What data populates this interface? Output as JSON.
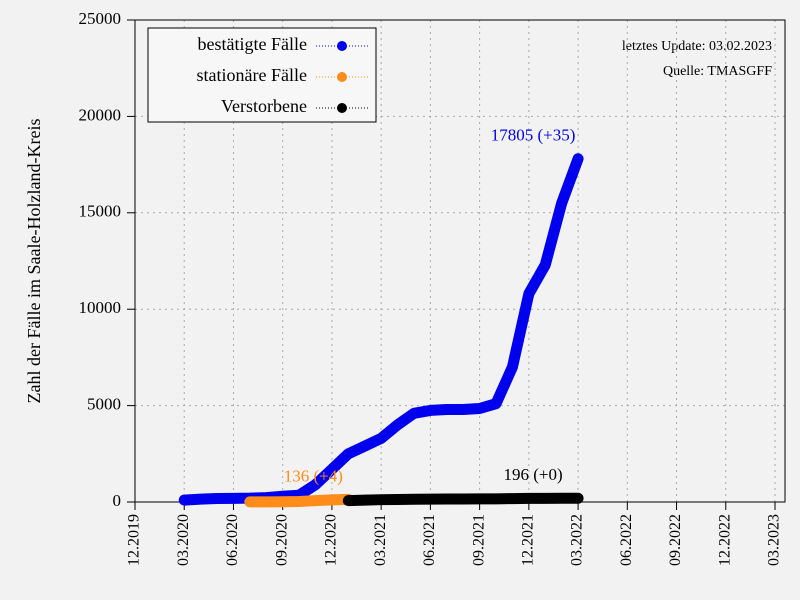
{
  "chart_data": {
    "type": "line",
    "y_label": "Zahl der Fälle im Saale-Holzland-Kreis",
    "annotations": [
      "letztes Update: 03.02.2023",
      "Quelle: TMASGFF"
    ],
    "xlim": [
      "2019-12",
      "2023-03"
    ],
    "xticks": [
      {
        "value": "2019-12",
        "label": "12.2019"
      },
      {
        "value": "2020-03",
        "label": "03.2020"
      },
      {
        "value": "2020-06",
        "label": "06.2020"
      },
      {
        "value": "2020-09",
        "label": "09.2020"
      },
      {
        "value": "2020-12",
        "label": "12.2020"
      },
      {
        "value": "2021-03",
        "label": "03.2021"
      },
      {
        "value": "2021-06",
        "label": "06.2021"
      },
      {
        "value": "2021-09",
        "label": "09.2021"
      },
      {
        "value": "2021-12",
        "label": "12.2021"
      },
      {
        "value": "2022-03",
        "label": "03.2022"
      },
      {
        "value": "2022-06",
        "label": "06.2022"
      },
      {
        "value": "2022-09",
        "label": "09.2022"
      },
      {
        "value": "2022-12",
        "label": "12.2022"
      },
      {
        "value": "2023-03",
        "label": "03.2023"
      }
    ],
    "ylim": [
      0,
      25000
    ],
    "yticks": [
      0,
      5000,
      10000,
      15000,
      20000,
      25000
    ],
    "grid": true,
    "legend": "upper left",
    "series": [
      {
        "name": "bestätigte Fälle",
        "color": "#0000ee",
        "end_label": "17805 (+35)",
        "x": [
          "2020-03",
          "2020-04",
          "2020-05",
          "2020-06",
          "2020-07",
          "2020-08",
          "2020-09",
          "2020-10",
          "2020-11",
          "2020-12",
          "2021-01",
          "2021-02",
          "2021-03",
          "2021-04",
          "2021-05",
          "2021-06",
          "2021-07",
          "2021-08",
          "2021-09",
          "2021-10",
          "2021-11",
          "2021-12",
          "2022-01",
          "2022-02",
          "2022-03"
        ],
        "values": [
          100,
          150,
          180,
          190,
          200,
          230,
          300,
          350,
          900,
          1700,
          2500,
          2900,
          3300,
          4000,
          4600,
          4750,
          4800,
          4800,
          4850,
          5100,
          7000,
          10800,
          12300,
          15500,
          17805
        ]
      },
      {
        "name": "stationäre Fälle",
        "color": "#ff8c1a",
        "end_label": "136 (+4)",
        "x": [
          "2020-07",
          "2020-08",
          "2020-09",
          "2020-10",
          "2020-11",
          "2020-12",
          "2021-01"
        ],
        "values": [
          5,
          8,
          10,
          25,
          70,
          110,
          136
        ]
      },
      {
        "name": "Verstorbene",
        "color": "#000000",
        "end_label": "196 (+0)",
        "x": [
          "2021-01",
          "2021-02",
          "2021-03",
          "2021-04",
          "2021-05",
          "2021-06",
          "2021-07",
          "2021-08",
          "2021-09",
          "2021-10",
          "2021-11",
          "2021-12",
          "2022-01",
          "2022-02",
          "2022-03"
        ],
        "values": [
          70,
          100,
          120,
          130,
          140,
          150,
          155,
          158,
          160,
          165,
          175,
          185,
          190,
          194,
          196
        ]
      }
    ]
  }
}
